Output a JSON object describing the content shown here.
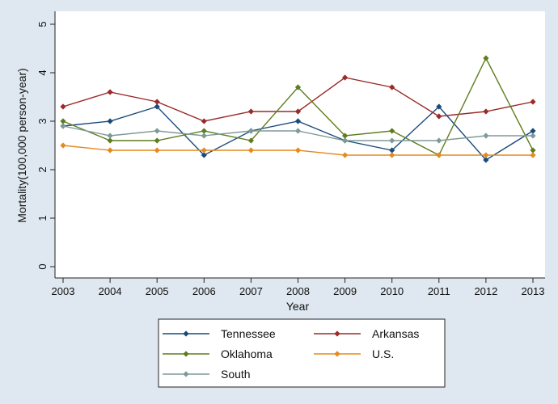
{
  "chart_data": {
    "type": "line",
    "title": "",
    "xlabel": "Year",
    "ylabel": "Mortality(100,000 person-year)",
    "x": [
      2003,
      2004,
      2005,
      2006,
      2007,
      2008,
      2009,
      2010,
      2011,
      2012,
      2013
    ],
    "x_tick_labels": [
      "2003",
      "2004",
      "2005",
      "2006",
      "2007",
      "2008",
      "2009",
      "2010",
      "2011",
      "2012",
      "2013"
    ],
    "ylim": [
      0,
      5
    ],
    "y_ticks": [
      0,
      1,
      2,
      3,
      4,
      5
    ],
    "y_tick_labels": [
      "0",
      "1",
      "2",
      "3",
      "4",
      "5"
    ],
    "grid": false,
    "legend_position": "bottom",
    "series": [
      {
        "name": "Tennessee",
        "color": "#1a4a7a",
        "values": [
          2.9,
          3.0,
          3.3,
          2.3,
          2.8,
          3.0,
          2.6,
          2.4,
          3.3,
          2.2,
          2.8
        ]
      },
      {
        "name": "Arkansas",
        "color": "#9b2a2a",
        "values": [
          3.3,
          3.6,
          3.4,
          3.0,
          3.2,
          3.2,
          3.9,
          3.7,
          3.1,
          3.2,
          3.4
        ]
      },
      {
        "name": "Oklahoma",
        "color": "#5e7d1e",
        "values": [
          3.0,
          2.6,
          2.6,
          2.8,
          2.6,
          3.7,
          2.7,
          2.8,
          2.3,
          4.3,
          2.4
        ]
      },
      {
        "name": "U.S.",
        "color": "#e58a1f",
        "values": [
          2.5,
          2.4,
          2.4,
          2.4,
          2.4,
          2.4,
          2.3,
          2.3,
          2.3,
          2.3,
          2.3
        ]
      },
      {
        "name": "South",
        "color": "#7e9a98",
        "values": [
          2.9,
          2.7,
          2.8,
          2.7,
          2.8,
          2.8,
          2.6,
          2.6,
          2.6,
          2.7,
          2.7
        ]
      }
    ]
  }
}
